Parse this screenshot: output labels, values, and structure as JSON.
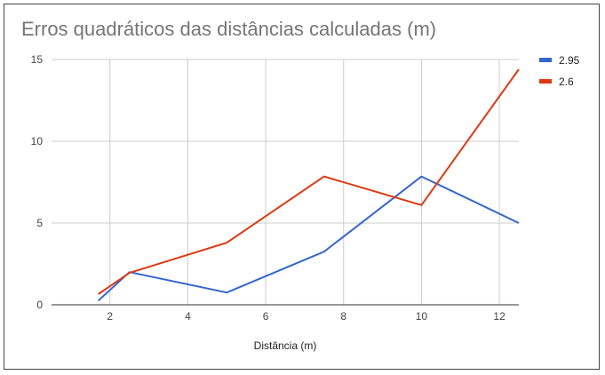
{
  "chart_data": {
    "type": "line",
    "title": "Erros quadráticos das distâncias calculadas (m)",
    "xlabel": "Distância (m)",
    "ylabel": "",
    "xlim": [
      0.5,
      12.5
    ],
    "ylim": [
      0,
      15
    ],
    "xticks": [
      2,
      4,
      6,
      8,
      10,
      12
    ],
    "yticks": [
      0,
      5,
      10,
      15
    ],
    "grid": true,
    "legend_position": "right",
    "series": [
      {
        "name": "2.95",
        "color": "#3366cc",
        "x": [
          1.7,
          2.5,
          5,
          7.5,
          10,
          12.5
        ],
        "y": [
          0.25,
          2.0,
          0.75,
          3.25,
          7.85,
          5.0
        ]
      },
      {
        "name": "2.6",
        "color": "#dc3912",
        "x": [
          1.7,
          2.5,
          5,
          7.5,
          10,
          12.5
        ],
        "y": [
          0.65,
          1.95,
          3.8,
          7.85,
          6.1,
          14.4
        ]
      }
    ]
  }
}
